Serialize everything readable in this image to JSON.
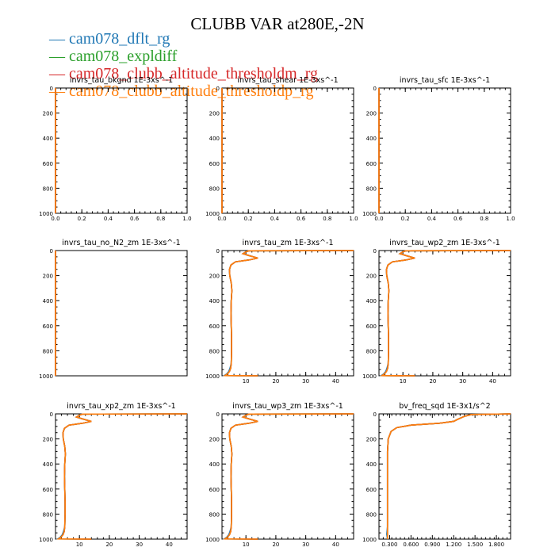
{
  "title": "CLUBB VAR at280E,-2N",
  "colors": {
    "dflt": "#1f77b4",
    "expldiff": "#2ca02c",
    "altm": "#d62728",
    "altp": "#ff7f0e"
  },
  "legend": [
    {
      "label": "cam078_dflt_rg",
      "color": "#1f77b4"
    },
    {
      "label": "cam078_expldiff",
      "color": "#2ca02c"
    },
    {
      "label": "cam078_clubb_altitude_thresholdm_rg",
      "color": "#d62728"
    },
    {
      "label": "cam078_clubb_altitude_thresholdp_rg",
      "color": "#ff7f0e"
    }
  ],
  "chart_data": [
    {
      "type": "line",
      "title": "invrs_tau_bkgnd   1E-3xs^-1",
      "xlim": [
        0,
        1
      ],
      "ylim": [
        1000,
        0
      ],
      "xticks": [
        0.0,
        0.2,
        0.4,
        0.6,
        0.8,
        1.0
      ],
      "xticklabels": [
        "0.0",
        "0.2",
        "0.4",
        "0.6",
        "0.8",
        "1.0"
      ],
      "yticks": [
        0,
        200,
        400,
        600,
        800,
        1000
      ],
      "profile": [
        [
          0,
          0
        ],
        [
          0,
          1000
        ]
      ]
    },
    {
      "type": "line",
      "title": "invrs_tau_shear   1E-3xs^-1",
      "xlim": [
        0,
        1
      ],
      "ylim": [
        1000,
        0
      ],
      "xticks": [
        0.0,
        0.2,
        0.4,
        0.6,
        0.8,
        1.0
      ],
      "xticklabels": [
        "0.0",
        "0.2",
        "0.4",
        "0.6",
        "0.8",
        "1.0"
      ],
      "yticks": [
        0,
        200,
        400,
        600,
        800,
        1000
      ],
      "profile": [
        [
          0,
          0
        ],
        [
          0,
          1000
        ]
      ]
    },
    {
      "type": "line",
      "title": "invrs_tau_sfc   1E-3xs^-1",
      "xlim": [
        0,
        1
      ],
      "ylim": [
        1000,
        0
      ],
      "xticks": [
        0.0,
        0.2,
        0.4,
        0.6,
        0.8,
        1.0
      ],
      "xticklabels": [
        "0.0",
        "0.2",
        "0.4",
        "0.6",
        "0.8",
        "1.0"
      ],
      "yticks": [
        0,
        200,
        400,
        600,
        800,
        1000
      ],
      "profile": [
        [
          0,
          0
        ],
        [
          0,
          1000
        ]
      ]
    },
    {
      "type": "line",
      "title": "invrs_tau_no_N2_zm   1E-3xs^-1",
      "xlim": [
        0,
        1
      ],
      "ylim": [
        1000,
        0
      ],
      "xticks": [],
      "xticklabels": [],
      "yticks": [
        0,
        200,
        400,
        600,
        800,
        1000
      ],
      "profile": [
        [
          0,
          0
        ],
        [
          0,
          1000
        ]
      ]
    },
    {
      "type": "line",
      "title": "invrs_tau_zm   1E-3xs^-1",
      "xlim": [
        2,
        46
      ],
      "ylim": [
        1000,
        0
      ],
      "xticks": [
        10,
        20,
        30,
        40
      ],
      "xticklabels": [
        "10",
        "20",
        "30",
        "40"
      ],
      "yticks": [
        0,
        200,
        400,
        600,
        800,
        1000
      ],
      "profile": [
        [
          46,
          0
        ],
        [
          11,
          2
        ],
        [
          10,
          10
        ],
        [
          9,
          25
        ],
        [
          11,
          40
        ],
        [
          14,
          60
        ],
        [
          11,
          75
        ],
        [
          6.5,
          90
        ],
        [
          5,
          115
        ],
        [
          4.5,
          150
        ],
        [
          4.6,
          200
        ],
        [
          5.1,
          260
        ],
        [
          5.3,
          320
        ],
        [
          5.1,
          400
        ],
        [
          5,
          500
        ],
        [
          5.1,
          600
        ],
        [
          5.2,
          700
        ],
        [
          5.2,
          800
        ],
        [
          5.1,
          900
        ],
        [
          4.9,
          940
        ],
        [
          4.5,
          965
        ],
        [
          3.8,
          985
        ],
        [
          3,
          998
        ],
        [
          14,
          1000
        ]
      ]
    },
    {
      "type": "line",
      "title": "invrs_tau_wp2_zm   1E-3xs^-1",
      "xlim": [
        2,
        46
      ],
      "ylim": [
        1000,
        0
      ],
      "xticks": [
        10,
        20,
        30,
        40
      ],
      "xticklabels": [
        "10",
        "20",
        "30",
        "40"
      ],
      "yticks": [
        0,
        200,
        400,
        600,
        800,
        1000
      ],
      "profile": [
        [
          46,
          0
        ],
        [
          11,
          2
        ],
        [
          10,
          10
        ],
        [
          9,
          25
        ],
        [
          11,
          40
        ],
        [
          14,
          60
        ],
        [
          11,
          75
        ],
        [
          6.5,
          90
        ],
        [
          5,
          115
        ],
        [
          4.5,
          150
        ],
        [
          4.6,
          200
        ],
        [
          5.1,
          260
        ],
        [
          5.3,
          320
        ],
        [
          5.1,
          400
        ],
        [
          5,
          500
        ],
        [
          5.1,
          600
        ],
        [
          5.2,
          700
        ],
        [
          5.2,
          800
        ],
        [
          5.1,
          900
        ],
        [
          4.9,
          940
        ],
        [
          4.5,
          965
        ],
        [
          3.8,
          985
        ],
        [
          3,
          998
        ],
        [
          14,
          1000
        ]
      ]
    },
    {
      "type": "line",
      "title": "invrs_tau_xp2_zm   1E-3xs^-1",
      "xlim": [
        2,
        46
      ],
      "ylim": [
        1000,
        0
      ],
      "xticks": [
        10,
        20,
        30,
        40
      ],
      "xticklabels": [
        "10",
        "20",
        "30",
        "40"
      ],
      "yticks": [
        0,
        200,
        400,
        600,
        800,
        1000
      ],
      "profile": [
        [
          46,
          0
        ],
        [
          11,
          2
        ],
        [
          10,
          10
        ],
        [
          9,
          25
        ],
        [
          11,
          40
        ],
        [
          14,
          60
        ],
        [
          11,
          75
        ],
        [
          6.5,
          90
        ],
        [
          5,
          115
        ],
        [
          4.5,
          150
        ],
        [
          4.6,
          200
        ],
        [
          5.1,
          260
        ],
        [
          5.3,
          320
        ],
        [
          5.1,
          400
        ],
        [
          5,
          500
        ],
        [
          5.1,
          600
        ],
        [
          5.2,
          700
        ],
        [
          5.2,
          800
        ],
        [
          5.1,
          900
        ],
        [
          4.9,
          940
        ],
        [
          4.5,
          965
        ],
        [
          3.8,
          985
        ],
        [
          3,
          998
        ],
        [
          14,
          1000
        ]
      ]
    },
    {
      "type": "line",
      "title": "invrs_tau_wp3_zm   1E-3xs^-1",
      "xlim": [
        2,
        46
      ],
      "ylim": [
        1000,
        0
      ],
      "xticks": [
        10,
        20,
        30,
        40
      ],
      "xticklabels": [
        "10",
        "20",
        "30",
        "40"
      ],
      "yticks": [
        0,
        200,
        400,
        600,
        800,
        1000
      ],
      "profile": [
        [
          46,
          0
        ],
        [
          11,
          2
        ],
        [
          10,
          10
        ],
        [
          9,
          25
        ],
        [
          11,
          40
        ],
        [
          14,
          60
        ],
        [
          11,
          75
        ],
        [
          6.5,
          90
        ],
        [
          5,
          115
        ],
        [
          4.5,
          150
        ],
        [
          4.6,
          200
        ],
        [
          5.1,
          260
        ],
        [
          5.3,
          320
        ],
        [
          5.1,
          400
        ],
        [
          5,
          500
        ],
        [
          5.1,
          600
        ],
        [
          5.2,
          700
        ],
        [
          5.2,
          800
        ],
        [
          5.1,
          900
        ],
        [
          4.9,
          940
        ],
        [
          4.5,
          965
        ],
        [
          3.8,
          985
        ],
        [
          3,
          998
        ],
        [
          14,
          1000
        ]
      ]
    },
    {
      "type": "line",
      "title": "bv_freq_sqd   1E-3x1/s^2",
      "xlim": [
        0.15,
        2.0
      ],
      "ylim": [
        1000,
        0
      ],
      "xticks": [
        0.3,
        0.6,
        0.9,
        1.2,
        1.5,
        1.8
      ],
      "xticklabels": [
        "0.300",
        "0.600",
        "0.900",
        "1.200",
        "1.500",
        "1.800"
      ],
      "yticks": [
        0,
        200,
        400,
        600,
        800,
        1000
      ],
      "profile": [
        [
          2.0,
          0
        ],
        [
          1.45,
          5
        ],
        [
          1.35,
          20
        ],
        [
          1.25,
          45
        ],
        [
          1.2,
          60
        ],
        [
          1.0,
          75
        ],
        [
          0.6,
          90
        ],
        [
          0.4,
          110
        ],
        [
          0.32,
          140
        ],
        [
          0.28,
          200
        ],
        [
          0.27,
          300
        ],
        [
          0.27,
          400
        ],
        [
          0.27,
          500
        ],
        [
          0.27,
          600
        ],
        [
          0.27,
          700
        ],
        [
          0.27,
          800
        ],
        [
          0.27,
          900
        ],
        [
          0.27,
          960
        ],
        [
          0.27,
          1000
        ]
      ]
    }
  ]
}
